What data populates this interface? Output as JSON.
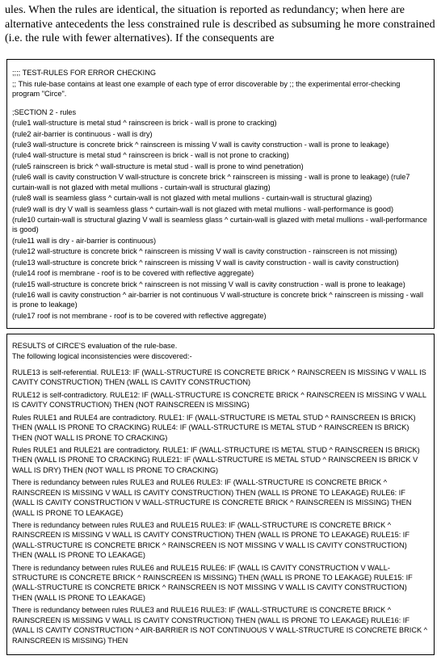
{
  "intro_text": "ules. When the rules are identical, the situation is reported as redundancy; when here are alternative antecedents the less constrained rule is described as subsuming he more constrained (i.e. the rule with fewer alternatives). If the consequents are",
  "panel1": {
    "header1": ";;;; TEST-RULES FOR ERROR CHECKING",
    "header2": ";;   This rule-base contains at least one example of each type of error discoverable by ;;    the experimental error-checking program \"Circe\".",
    "section_label": ";SECTION 2 - rules",
    "rules": [
      "(rule1 wall-structure is metal stud ^ rainscreen is brick - wall is prone to cracking)",
      "(rule2 air-barrier is continuous - wall is dry)",
      "(rule3 wall-structure is concrete brick ^ rainscreen is missing V wall is cavity construction  - wall is prone to leakage)",
      "(rule4 wall-structure is metal stud ^ rainscreen is brick - wall is not prone to cracking)",
      "(rule5 rainscreen is brick ^ wall-structure is metal stud - wall is prone to wind penetration)",
      "(rule6 wall is cavity construction V wall-structure is concrete brick ^ rainscreen is missing - wall is prone to leakage) (rule7 curtain-wall is not glazed with metal mullions - curtain-wall is structural glazing)",
      "(rule8 wall is seamless glass ^ curtain-wall is not glazed with metal mullions - curtain-wall is structural glazing)",
      "(rule9 wall is dry V wall is seamless glass ^ curtain-wall is not glazed with metal mullions - wall-performance is good)",
      "(rule10 curtain-wall is structural glazing V wall is seamless glass ^ curtain-wall is glazed with metal mullions - wall-performance is good)",
      "(rule11 wall is dry - air-barrier is continuous)",
      "(rule12 wall-structure is concrete brick ^ rainscreen is missing V wall is cavity construction - rainscreen is not missing)",
      "(rule13 wall-structure is concrete brick ^ rainscreen is missing V wall is cavity construction - wall is cavity construction)",
      "(rule14 roof is membrane - roof is to be covered with reflective aggregate)",
      "(rule15 wall-structure is concrete brick ^ rainscreen is not missing V wall is cavity construction - wall is prone to leakage)",
      "(rule16 wall is cavity construction ^ air-barrier is not continuous V wall-structure is concrete brick ^ rainscreen is missing - wall is prone to leakage)",
      "(rule17 roof is not membrane - roof is to be covered with reflective aggregate)"
    ]
  },
  "panel2": {
    "intro1": "RESULTS of CIRCE'S evaluation of the rule-base.",
    "intro2": "The following logical inconsistencies were discovered:-",
    "results": [
      "RULE13 is self-referential. RULE13: IF (WALL-STRUCTURE IS CONCRETE BRICK ^ RAINSCREEN IS MISSING V WALL IS CAVITY CONSTRUCTION) THEN (WALL IS CAVITY CONSTRUCTION)",
      "RULE12 is self-contradictory. RULE12: IF (WALL-STRUCTURE IS CONCRETE BRICK ^ RAINSCREEN IS MISSING V WALL IS CAVITY CONSTRUCTION) THEN (NOT RAINSCREEN IS MISSING)",
      "Rules RULE1 and RULE4 are contradictory. RULE1: IF (WALL-STRUCTURE IS METAL STUD ^ RAINSCREEN IS BRICK) THEN (WALL IS PRONE TO CRACKING) RULE4: IF (WALL-STRUCTURE IS METAL STUD ^ RAINSCREEN IS BRICK) THEN (NOT WALL IS PRONE TO CRACKING)",
      "Rules RULE1 and RULE21 are contradictory. RULE1: IF (WALL-STRUCTURE IS METAL STUD ^ RAINSCREEN IS BRICK) THEN (WALL IS PRONE TO CRACKING) RULE21: IF (WALL-STRUCTURE IS METAL STUD ^ RAINSCREEN IS BRICK V WALL IS DRY) THEN (NOT WALL IS PRONE TO CRACKING)",
      "There is redundancy between rules RULE3 and RULE6 RULE3: IF (WALL-STRUCTURE IS CONCRETE BRICK ^ RAINSCREEN IS MISSING V WALL IS CAVITY CONSTRUCTION) THEN (WALL IS PRONE TO LEAKAGE) RULE6: IF (WALL IS CAVITY CONSTRUCTION V WALL-STRUCTURE IS CONCRETE BRICK ^ RAINSCREEN IS MISSING) THEN (WALL IS PRONE TO LEAKAGE)",
      "There is redundancy between rules RULE3 and RULE15 RULE3: IF (WALL-STRUCTURE IS CONCRETE BRICK ^ RAINSCREEN IS MISSING V WALL IS CAVITY CONSTRUCTION) THEN (WALL IS PRONE TO LEAKAGE) RULE15: IF (WALL-STRUCTURE IS CONCRETE BRICK ^ RAINSCREEN IS NOT MISSING V WALL IS CAVITY CONSTRUCTION) THEN (WALL IS PRONE TO LEAKAGE)",
      "There is redundancy between rules RULE6 and RULE15 RULE6: IF (WALL IS CAVITY CONSTRUCTION V WALL-STRUCTURE IS CONCRETE BRICK ^ RAINSCREEN IS MISSING) THEN (WALL IS PRONE TO LEAKAGE) RULE15: IF (WALL-STRUCTURE IS CONCRETE BRICK ^ RAINSCREEN IS NOT MISSING V WALL IS CAVITY CONSTRUCTION) THEN (WALL IS PRONE TO LEAKAGE)",
      "There is redundancy between rules RULE3 and RULE16 RULE3: IF (WALL-STRUCTURE IS CONCRETE BRICK ^ RAINSCREEN IS MISSING V WALL IS CAVITY CONSTRUCTION) THEN (WALL IS PRONE TO LEAKAGE) RULE16: IF (WALL IS CAVITY CONSTRUCTION ^ AIR-BARRIER IS NOT CONTINUOUS V WALL-STRUCTURE IS CONCRETE BRICK ^ RAINSCREEN IS MISSING) THEN"
    ]
  }
}
